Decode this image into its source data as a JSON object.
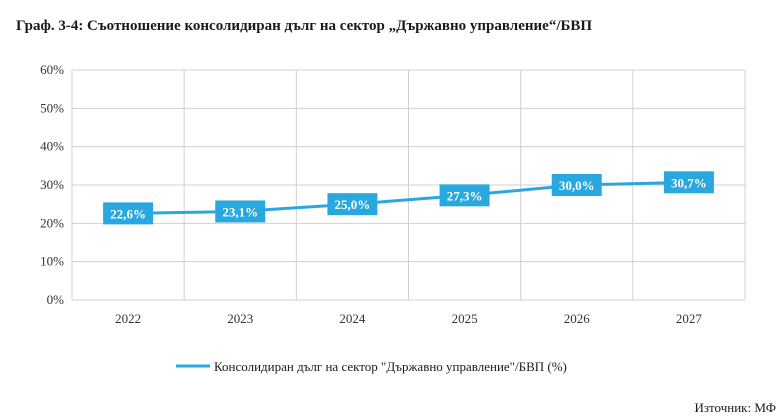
{
  "chart_data": {
    "type": "line",
    "title": "Граф. 3-4:  Съотношение консолидиран дълг на сектор „Държавно управление“/БВП",
    "categories": [
      "2022",
      "2023",
      "2024",
      "2025",
      "2026",
      "2027"
    ],
    "series": [
      {
        "name": "Консолидиран дълг на сектор \"Държавно управление\"/БВП (%)",
        "values": [
          22.6,
          23.1,
          25.0,
          27.3,
          30.0,
          30.7
        ],
        "labels": [
          "22,6%",
          "23,1%",
          "25,0%",
          "27,3%",
          "30,0%",
          "30,7%"
        ],
        "color": "#29a8e0"
      }
    ],
    "ylim": [
      0,
      60
    ],
    "yticks": [
      0,
      10,
      20,
      30,
      40,
      50,
      60
    ],
    "ytick_labels": [
      "0%",
      "10%",
      "20%",
      "30%",
      "40%",
      "50%",
      "60%"
    ],
    "grid": true,
    "legend": "bottom-center"
  },
  "source": "Източник: МФ"
}
